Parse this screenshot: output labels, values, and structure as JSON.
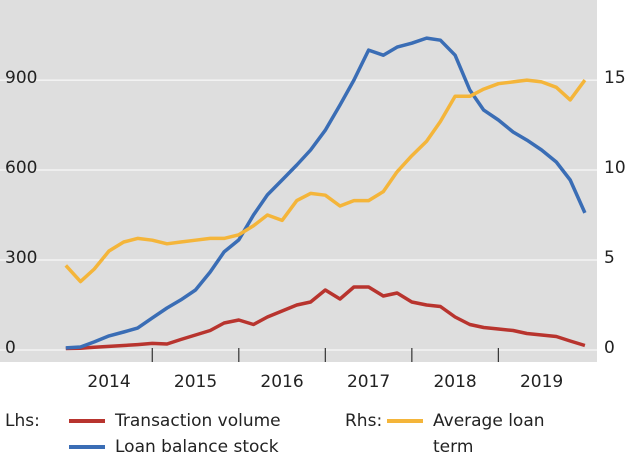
{
  "chart_data": {
    "type": "line",
    "x": [
      2014,
      2014.17,
      2014.33,
      2014.5,
      2014.67,
      2014.83,
      2015,
      2015.17,
      2015.33,
      2015.5,
      2015.67,
      2015.83,
      2016,
      2016.17,
      2016.33,
      2016.5,
      2016.67,
      2016.83,
      2017,
      2017.17,
      2017.33,
      2017.5,
      2017.67,
      2017.83,
      2018,
      2018.17,
      2018.33,
      2018.5,
      2018.67,
      2018.83,
      2019,
      2019.17,
      2019.33,
      2019.5,
      2019.67,
      2019.83,
      2020
    ],
    "series": [
      {
        "name": "Transaction volume",
        "color": "#b8342e",
        "axis": "y",
        "values": [
          5,
          6,
          9,
          12,
          15,
          18,
          22,
          20,
          35,
          50,
          65,
          90,
          100,
          85,
          110,
          130,
          150,
          160,
          200,
          170,
          210,
          210,
          180,
          190,
          160,
          150,
          145,
          110,
          85,
          75,
          70,
          65,
          55,
          50,
          45,
          30,
          15
        ]
      },
      {
        "name": "Loan balance stock",
        "color": "#3a6db5",
        "axis": "y",
        "values": [
          7,
          10,
          27,
          47,
          60,
          73,
          107,
          140,
          167,
          200,
          260,
          327,
          367,
          450,
          517,
          567,
          617,
          667,
          733,
          817,
          900,
          1000,
          983,
          1010,
          1023,
          1040,
          1033,
          983,
          867,
          800,
          767,
          727,
          700,
          667,
          627,
          567,
          457
        ]
      },
      {
        "name": "Average loan term",
        "color": "#f4b53a",
        "axis": "y2",
        "values": [
          4.7,
          3.8,
          4.5,
          5.5,
          6.0,
          6.2,
          6.1,
          5.9,
          6.0,
          6.1,
          6.2,
          6.2,
          6.4,
          6.9,
          7.5,
          7.2,
          8.3,
          8.7,
          8.6,
          8.0,
          8.3,
          8.3,
          8.8,
          9.9,
          10.8,
          11.6,
          12.7,
          14.1,
          14.1,
          14.5,
          14.8,
          14.9,
          15.0,
          14.9,
          14.6,
          13.9,
          15.0
        ]
      }
    ],
    "legend_prefix": {
      "y": "Lhs:",
      "y2": "Rhs:"
    },
    "xlim": [
      2013.24,
      2020.14
    ],
    "xticks": [
      {
        "value": 2014.5,
        "label": "2014"
      },
      {
        "value": 2015.5,
        "label": "2015"
      },
      {
        "value": 2016.5,
        "label": "2016"
      },
      {
        "value": 2017.5,
        "label": "2017"
      },
      {
        "value": 2018.5,
        "label": "2018"
      },
      {
        "value": 2019.5,
        "label": "2019"
      }
    ],
    "xminor_ticks": [
      2015,
      2016,
      2017,
      2018,
      2019
    ],
    "ylim": [
      -40,
      1167
    ],
    "yticks": [
      0,
      300,
      600,
      900
    ],
    "y2lim": [
      -0.667,
      19.45
    ],
    "y2ticks": [
      0,
      5,
      10,
      15
    ],
    "grid": true,
    "background": "#dedede"
  }
}
